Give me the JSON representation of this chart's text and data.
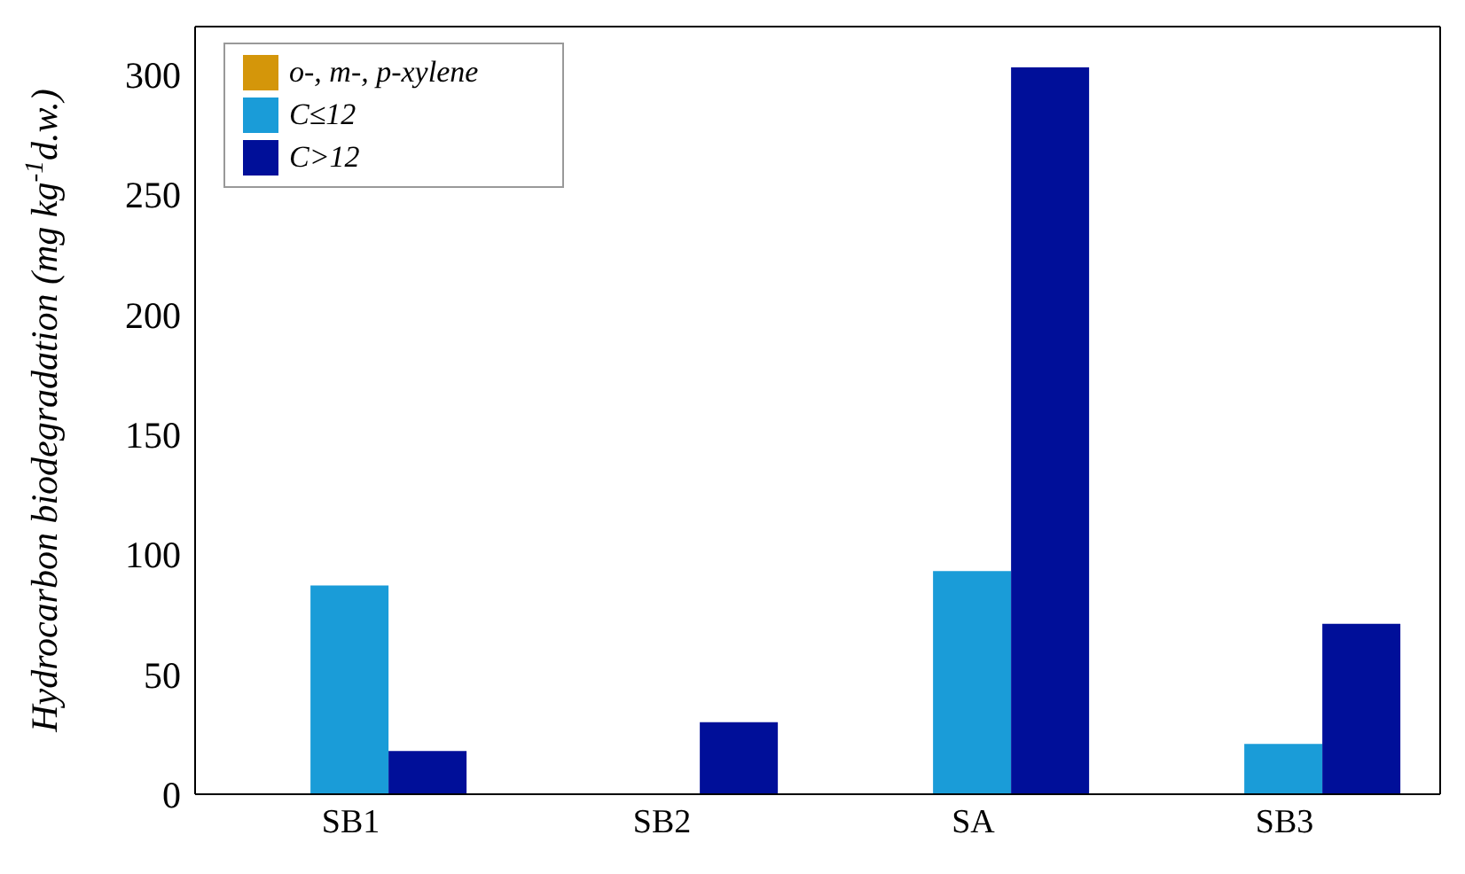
{
  "chart_data": {
    "type": "bar",
    "ylabel": "Hydrocarbon biodegradation (mg kg$^{-1}$d.w.)",
    "categories": [
      "SB1",
      "SB2",
      "SA",
      "SB3"
    ],
    "series": [
      {
        "name": "o-, m-, p-xylene",
        "color": "#d4960a",
        "values": [
          0,
          0,
          0,
          0
        ]
      },
      {
        "name": "C≤12",
        "color": "#1a9cd8",
        "values": [
          87,
          0,
          93,
          21
        ]
      },
      {
        "name": "C>12",
        "color": "#000f99",
        "values": [
          18,
          30,
          303,
          71
        ]
      }
    ],
    "ylim": [
      0,
      320
    ],
    "yticks": [
      0,
      50,
      100,
      150,
      200,
      250,
      300
    ],
    "grid": false,
    "legend": "top left"
  }
}
